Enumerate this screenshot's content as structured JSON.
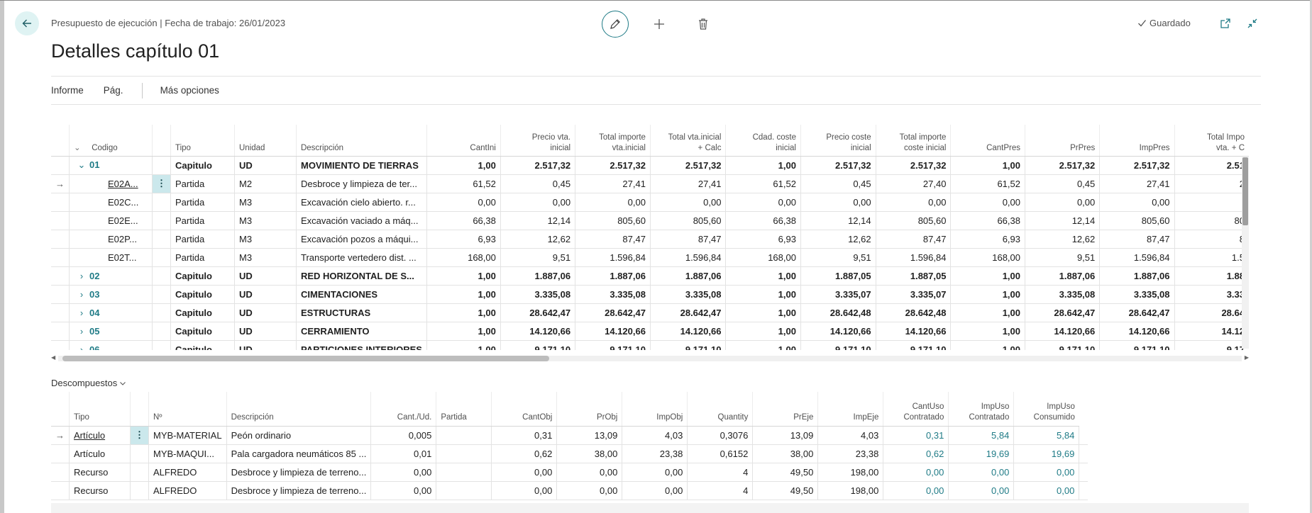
{
  "header": {
    "breadcrumb": "Presupuesto de ejecución | Fecha de trabajo: 26/01/2023",
    "title": "Detalles capítulo 01",
    "saved_label": "Guardado"
  },
  "actions": {
    "informe": "Informe",
    "pag": "Pág.",
    "mas_opciones": "Más opciones"
  },
  "main_table": {
    "columns": {
      "codigo": "Codigo",
      "tipo": "Tipo",
      "unidad": "Unidad",
      "descripcion": "Descripción",
      "cantini": "CantIni",
      "precio_vta_inicial": [
        "Precio vta.",
        "inicial"
      ],
      "total_importe_vta_inicial": [
        "Total importe",
        "vta.inicial"
      ],
      "total_vta_inicial_calc": [
        "Total vta.inicial",
        "+ Calc"
      ],
      "cdad_coste_inicial": [
        "Cdad. coste",
        "inicial"
      ],
      "precio_coste_inicial": [
        "Precio coste",
        "inicial"
      ],
      "total_importe_coste_inicial": [
        "Total importe",
        "coste inicial"
      ],
      "cantpres": "CantPres",
      "prpres": "PrPres",
      "imppres": "ImpPres",
      "total_impo_vta_c": [
        "Total Impo",
        "vta. + C"
      ]
    },
    "rows": [
      {
        "code": "01",
        "kind": "chapter",
        "expanded": true,
        "tipo": "Capitulo",
        "unidad": "UD",
        "descripcion": "MOVIMIENTO DE TIERRAS",
        "v": [
          "1,00",
          "2.517,32",
          "2.517,32",
          "2.517,32",
          "1,00",
          "2.517,32",
          "2.517,32",
          "1,00",
          "2.517,32",
          "2.517,32",
          "2.51"
        ]
      },
      {
        "code": "E02A...",
        "kind": "item",
        "current": true,
        "tipo": "Partida",
        "unidad": "M2",
        "descripcion": "Desbroce y limpieza de ter...",
        "v": [
          "61,52",
          "0,45",
          "27,41",
          "27,41",
          "61,52",
          "0,45",
          "27,40",
          "61,52",
          "0,45",
          "27,41",
          "2"
        ]
      },
      {
        "code": "E02C...",
        "kind": "item",
        "tipo": "Partida",
        "unidad": "M3",
        "descripcion": "Excavación cielo abierto. r...",
        "v": [
          "0,00",
          "0,00",
          "0,00",
          "0,00",
          "0,00",
          "0,00",
          "0,00",
          "0,00",
          "0,00",
          "0,00",
          ""
        ]
      },
      {
        "code": "E02E...",
        "kind": "item",
        "tipo": "Partida",
        "unidad": "M3",
        "descripcion": "Excavación vaciado a máq...",
        "v": [
          "66,38",
          "12,14",
          "805,60",
          "805,60",
          "66,38",
          "12,14",
          "805,60",
          "66,38",
          "12,14",
          "805,60",
          "80"
        ]
      },
      {
        "code": "E02P...",
        "kind": "item",
        "tipo": "Partida",
        "unidad": "M3",
        "descripcion": "Excavación pozos a máqui...",
        "v": [
          "6,93",
          "12,62",
          "87,47",
          "87,47",
          "6,93",
          "12,62",
          "87,47",
          "6,93",
          "12,62",
          "87,47",
          "8"
        ]
      },
      {
        "code": "E02T...",
        "kind": "item",
        "tipo": "Partida",
        "unidad": "M3",
        "descripcion": "Transporte vertedero dist. ...",
        "v": [
          "168,00",
          "9,51",
          "1.596,84",
          "1.596,84",
          "168,00",
          "9,51",
          "1.596,84",
          "168,00",
          "9,51",
          "1.596,84",
          "1.5"
        ]
      },
      {
        "code": "02",
        "kind": "chapter",
        "tipo": "Capitulo",
        "unidad": "UD",
        "descripcion": "RED HORIZONTAL DE S...",
        "v": [
          "1,00",
          "1.887,06",
          "1.887,06",
          "1.887,06",
          "1,00",
          "1.887,05",
          "1.887,05",
          "1,00",
          "1.887,06",
          "1.887,06",
          "1.88"
        ]
      },
      {
        "code": "03",
        "kind": "chapter",
        "tipo": "Capitulo",
        "unidad": "UD",
        "descripcion": "CIMENTACIONES",
        "v": [
          "1,00",
          "3.335,08",
          "3.335,08",
          "3.335,08",
          "1,00",
          "3.335,07",
          "3.335,07",
          "1,00",
          "3.335,08",
          "3.335,08",
          "3.33"
        ]
      },
      {
        "code": "04",
        "kind": "chapter",
        "tipo": "Capitulo",
        "unidad": "UD",
        "descripcion": "ESTRUCTURAS",
        "v": [
          "1,00",
          "28.642,47",
          "28.642,47",
          "28.642,47",
          "1,00",
          "28.642,48",
          "28.642,48",
          "1,00",
          "28.642,47",
          "28.642,47",
          "28.64"
        ]
      },
      {
        "code": "05",
        "kind": "chapter",
        "tipo": "Capitulo",
        "unidad": "UD",
        "descripcion": "CERRAMIENTO",
        "v": [
          "1,00",
          "14.120,66",
          "14.120,66",
          "14.120,66",
          "1,00",
          "14.120,66",
          "14.120,66",
          "1,00",
          "14.120,66",
          "14.120,66",
          "14.12"
        ]
      },
      {
        "code": "06",
        "kind": "chapter",
        "tipo": "Capitulo",
        "unidad": "UD",
        "descripcion": "PARTICIONES INTERIORES",
        "v": [
          "1,00",
          "9.171,10",
          "9.171,10",
          "9.171,10",
          "1,00",
          "9.171,10",
          "9.171,10",
          "1,00",
          "9.171,10",
          "9.171,10",
          "9.17"
        ]
      }
    ]
  },
  "subpage": {
    "title": "Descompuestos",
    "columns": {
      "tipo": "Tipo",
      "no": "Nº",
      "descripcion": "Descripción",
      "cant_ud": "Cant./Ud.",
      "partida": "Partida",
      "cantobj": "CantObj",
      "probj": "PrObj",
      "impobj": "ImpObj",
      "quantity": "Quantity",
      "preje": "PrEje",
      "impeje": "ImpEje",
      "cantuso_contratado": [
        "CantUso",
        "Contratado"
      ],
      "impuso_contratado": [
        "ImpUso",
        "Contratado"
      ],
      "impuso_consumido": [
        "ImpUso",
        "Consumido"
      ]
    },
    "rows": [
      {
        "tipo": "Artículo",
        "current": true,
        "no": "MYB-MATERIAL",
        "descripcion": "Peón ordinario",
        "cant_ud": "0,005",
        "partida": "",
        "cantobj": "0,31",
        "probj": "13,09",
        "impobj": "4,03",
        "quantity": "0,3076",
        "preje": "13,09",
        "impeje": "4,03",
        "c1": "0,31",
        "c2": "5,84",
        "c3": "5,84"
      },
      {
        "tipo": "Artículo",
        "no": "MYB-MAQUI...",
        "descripcion": "Pala cargadora neumáticos 85 ...",
        "cant_ud": "0,01",
        "partida": "",
        "cantobj": "0,62",
        "probj": "38,00",
        "impobj": "23,38",
        "quantity": "0,6152",
        "preje": "38,00",
        "impeje": "23,38",
        "c1": "0,62",
        "c2": "19,69",
        "c3": "19,69"
      },
      {
        "tipo": "Recurso",
        "no": "ALFREDO",
        "descripcion": "Desbroce y limpieza de terreno...",
        "cant_ud": "0,00",
        "partida": "",
        "cantobj": "0,00",
        "probj": "0,00",
        "impobj": "0,00",
        "quantity": "4",
        "preje": "49,50",
        "impeje": "198,00",
        "c1": "0,00",
        "c2": "0,00",
        "c3": "0,00"
      },
      {
        "tipo": "Recurso",
        "no": "ALFREDO",
        "descripcion": "Desbroce y limpieza de terreno...",
        "cant_ud": "0,00",
        "partida": "",
        "cantobj": "0,00",
        "probj": "0,00",
        "impobj": "0,00",
        "quantity": "4",
        "preje": "49,50",
        "impeje": "198,00",
        "c1": "0,00",
        "c2": "0,00",
        "c3": "0,00"
      }
    ]
  },
  "colors": {
    "accent": "#1f7b86",
    "selected_cell": "#cbe8ec",
    "back_button_bg": "#dff3f3"
  }
}
